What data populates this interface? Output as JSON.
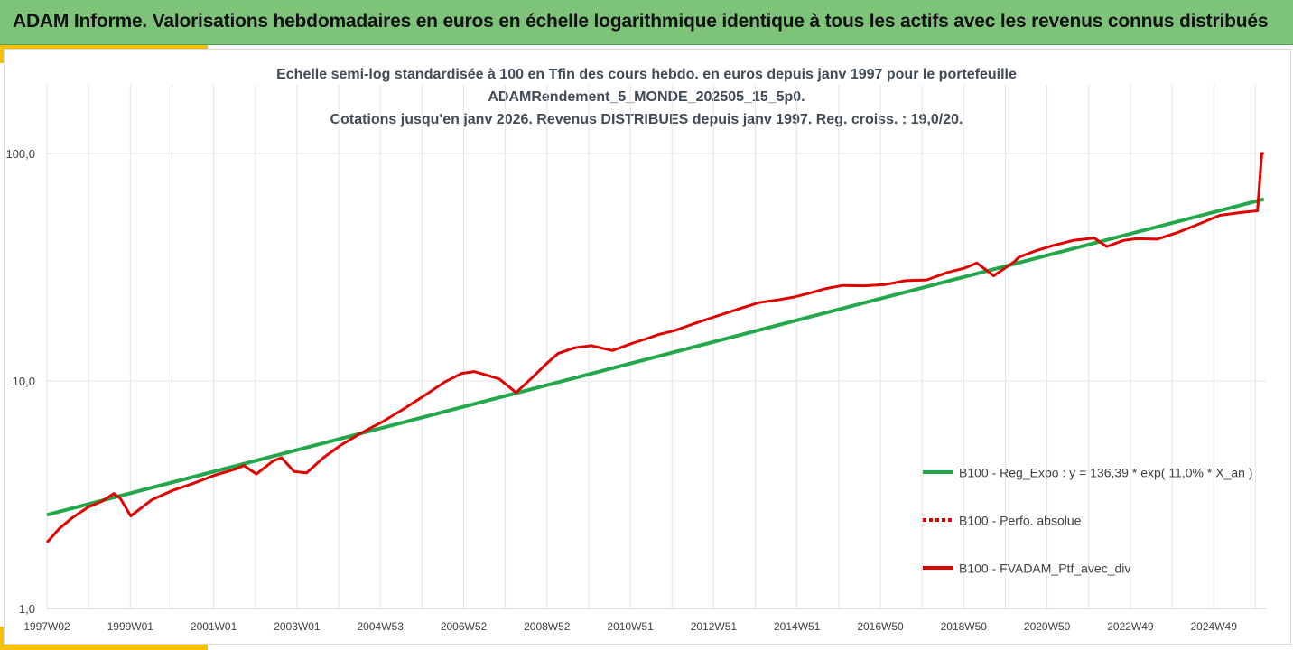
{
  "banner": {
    "title": "ADAM Informe. Valorisations hebdomadaires en euros en échelle logarithmique identique à tous les actifs avec les revenus connus distribués"
  },
  "colors": {
    "banner_bg": "#7dc47a",
    "accent": "#f5c000",
    "regression": "#22a84a",
    "portfolio": "#e00000"
  },
  "chart_data": {
    "type": "line",
    "title_lines": [
      "Echelle semi-log standardisée à 100 en Tfin des cours hebdo.  en euros depuis janv 1997 pour le portefeuille",
      "ADAMRendement_5_MONDE_202505_15_5p0.",
      "Cotations jusqu'en janv 2026. Revenus DISTRIBUES depuis janv 1997. Reg. croiss. : 19,0/20."
    ],
    "y_scale": "log",
    "ylim": [
      1,
      200
    ],
    "y_ticks": [
      "1,0",
      "10,0",
      "100,0"
    ],
    "xlim": [
      1997.0,
      2026.1
    ],
    "x_ticks": [
      "1997W02",
      "1999W01",
      "2001W01",
      "2003W01",
      "2004W53",
      "2006W52",
      "2008W52",
      "2010W51",
      "2012W51",
      "2014W51",
      "2016W50",
      "2018W50",
      "2020W50",
      "2022W49",
      "2024W49"
    ],
    "grid": "vertical and horizontal major",
    "legend_position": "right",
    "series": [
      {
        "name": "B100 - Reg_Expo : y = 136,39 * exp( 11,0% *  X_an )",
        "style": "solid",
        "x": [
          1997.0,
          2026.05
        ],
        "y": [
          2.58,
          63.0
        ]
      },
      {
        "name": "B100 - Perfo. absolue",
        "style": "dotted",
        "x": [],
        "y": []
      },
      {
        "name": "B100 - FVADAM_Ptf_avec_div",
        "style": "solid",
        "x": [
          1997.0,
          1997.3,
          1997.6,
          1998.0,
          1998.3,
          1998.6,
          1998.75,
          1999.0,
          1999.5,
          2000.0,
          2000.5,
          2001.0,
          2001.5,
          2001.7,
          2002.0,
          2002.4,
          2002.6,
          2002.9,
          2003.2,
          2003.6,
          2004.0,
          2004.5,
          2005.0,
          2005.5,
          2006.0,
          2006.5,
          2006.9,
          2007.2,
          2007.5,
          2007.8,
          2008.2,
          2008.6,
          2008.9,
          2009.2,
          2009.6,
          2010.0,
          2010.5,
          2011.0,
          2011.3,
          2011.6,
          2012.0,
          2012.5,
          2013.0,
          2013.5,
          2014.0,
          2014.5,
          2014.8,
          2015.2,
          2015.6,
          2016.0,
          2016.5,
          2017.0,
          2017.5,
          2018.0,
          2018.5,
          2018.9,
          2019.2,
          2019.6,
          2020.1,
          2020.2,
          2020.6,
          2021.0,
          2021.5,
          2022.0,
          2022.3,
          2022.7,
          2023.0,
          2023.5,
          2024.0,
          2024.5,
          2025.0,
          2025.5,
          2025.9,
          2026.0,
          2026.05
        ],
        "y": [
          1.95,
          2.25,
          2.5,
          2.8,
          2.95,
          3.2,
          3.05,
          2.55,
          3.0,
          3.3,
          3.55,
          3.85,
          4.1,
          4.25,
          3.9,
          4.45,
          4.6,
          4.0,
          3.95,
          4.6,
          5.2,
          5.9,
          6.6,
          7.5,
          8.6,
          9.9,
          10.8,
          11.0,
          10.6,
          10.2,
          8.9,
          10.4,
          11.8,
          13.2,
          14.0,
          14.3,
          13.6,
          14.7,
          15.3,
          16.0,
          16.7,
          18.0,
          19.3,
          20.7,
          22.1,
          22.8,
          23.3,
          24.3,
          25.5,
          26.3,
          26.2,
          26.5,
          27.6,
          27.8,
          30.0,
          31.3,
          33.0,
          29.0,
          33.5,
          35.0,
          37.3,
          39.3,
          41.5,
          42.5,
          39.0,
          41.5,
          42.2,
          42.0,
          45.0,
          49.0,
          53.5,
          55.0,
          56.0,
          100.0,
          100.0
        ]
      }
    ]
  }
}
